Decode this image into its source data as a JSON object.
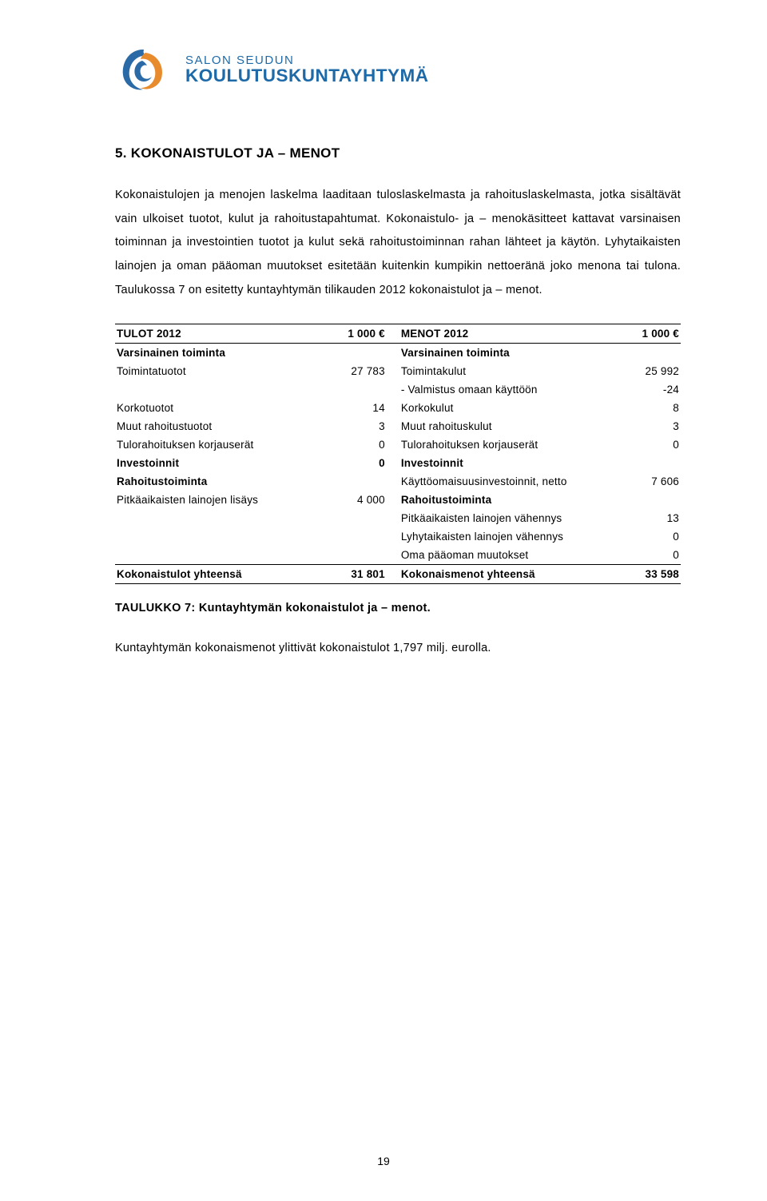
{
  "logo": {
    "line1": "SALON SEUDUN",
    "line2": "KOULUTUSKUNTAYHTYMÄ",
    "brand_blue": "#1e6aa8",
    "swirl_orange": "#e88b2d",
    "swirl_blue": "#2a6aa6"
  },
  "heading": "5. KOKONAISTULOT JA – MENOT",
  "para1": "Kokonaistulojen ja menojen laskelma laaditaan tuloslaskelmasta ja rahoituslaskelmasta, jotka sisältävät vain ulkoiset tuotot, kulut ja rahoitustapahtumat. Kokonaistulo- ja – menokäsitteet kattavat varsinaisen toiminnan ja investointien tuotot ja kulut sekä rahoitustoiminnan rahan lähteet ja käytön. Lyhytaikaisten lainojen ja oman pääoman muutokset esitetään kuitenkin kumpikin nettoeränä joko menona tai tulona. Taulukossa 7 on esitetty kuntayhtymän tilikauden 2012 kokonaistulot ja – menot.",
  "table": {
    "left_header": "TULOT 2012",
    "right_header": "MENOT 2012",
    "unit": "1 000 €",
    "left_sub": "Varsinainen toiminta",
    "right_sub": "Varsinainen toiminta",
    "rows": [
      {
        "ll": "Toimintatuotot",
        "lv": "27 783",
        "rl": "Toimintakulut",
        "rv": "25 992"
      },
      {
        "ll": "",
        "lv": "",
        "rl": "- Valmistus omaan käyttöön",
        "rv": "-24"
      },
      {
        "ll": "Korkotuotot",
        "lv": "14",
        "rl": "Korkokulut",
        "rv": "8"
      },
      {
        "ll": "Muut rahoitustuotot",
        "lv": "3",
        "rl": "Muut rahoituskulut",
        "rv": "3"
      },
      {
        "ll": "Tulorahoituksen korjauserät",
        "lv": "0",
        "rl": "Tulorahoituksen korjauserät",
        "rv": "0"
      },
      {
        "ll": "Investoinnit",
        "lv": "0",
        "rl": "Investoinnit",
        "rv": "",
        "lbold": true,
        "rbold": true
      },
      {
        "ll": "Rahoitustoiminta",
        "lv": "",
        "rl": "Käyttöomaisuusinvestoinnit, netto",
        "rv": "7 606",
        "lbold": true
      },
      {
        "ll": "Pitkäaikaisten lainojen lisäys",
        "lv": "4 000",
        "rl": "Rahoitustoiminta",
        "rv": "",
        "rbold": true
      },
      {
        "ll": "",
        "lv": "",
        "rl": "Pitkäaikaisten lainojen vähennys",
        "rv": "13"
      },
      {
        "ll": "",
        "lv": "",
        "rl": "Lyhytaikaisten lainojen vähennys",
        "rv": "0"
      },
      {
        "ll": "",
        "lv": "",
        "rl": "Oma pääoman muutokset",
        "rv": "0"
      }
    ],
    "total_left_label": "Kokonaistulot yhteensä",
    "total_left_value": "31 801",
    "total_right_label": "Kokonaismenot yhteensä",
    "total_right_value": "33 598"
  },
  "caption": "TAULUKKO 7: Kuntayhtymän kokonaistulot ja – menot.",
  "para2": "Kuntayhtymän kokonaismenot ylittivät kokonaistulot 1,797 milj. eurolla.",
  "page_number": "19"
}
